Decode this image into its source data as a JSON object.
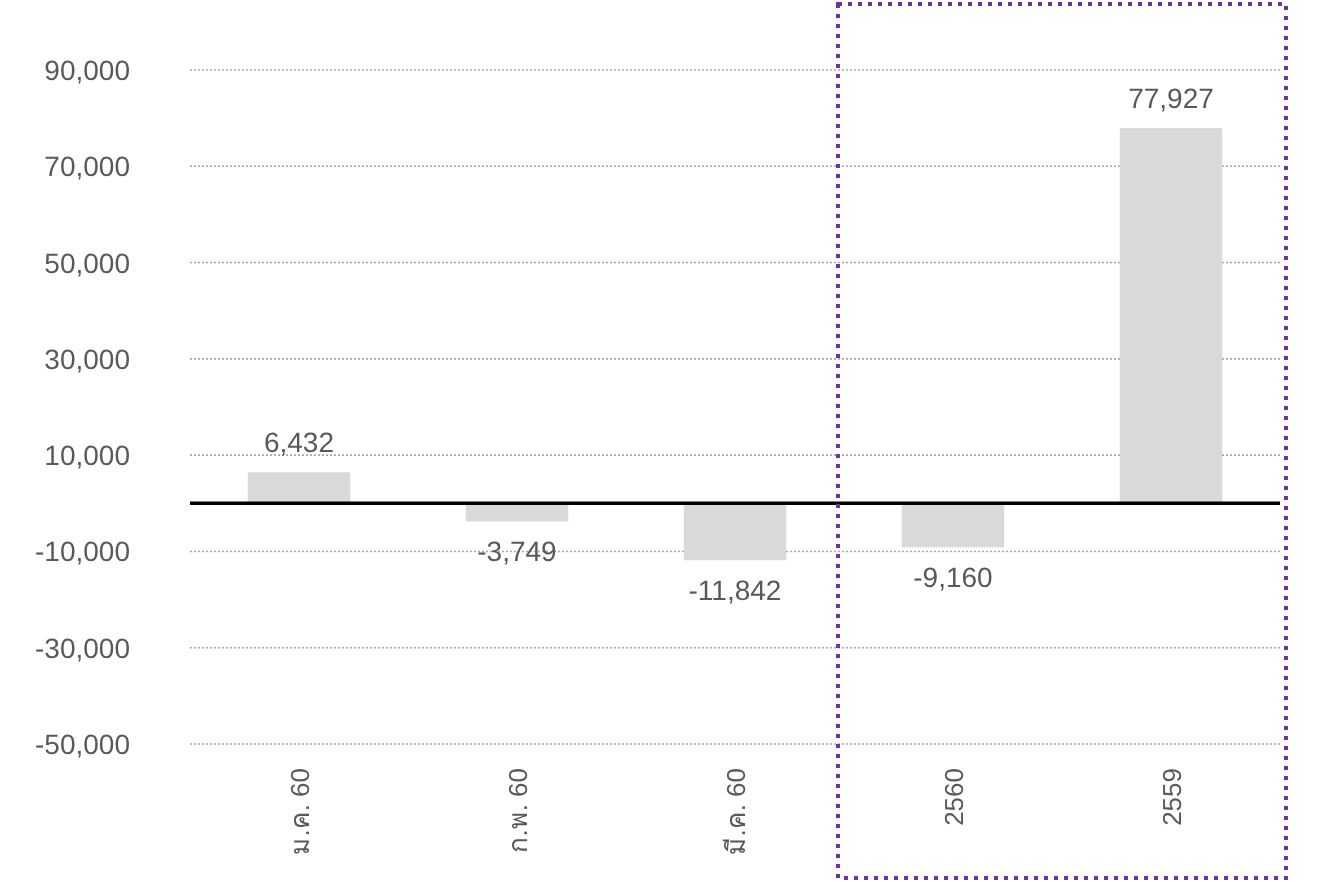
{
  "chart_data": {
    "type": "bar",
    "categories": [
      "ม.ค. 60",
      "ก.พ. 60",
      "มี.ค. 60",
      "2560",
      "2559"
    ],
    "values": [
      6432,
      -3749,
      -11842,
      -9160,
      77927
    ],
    "value_labels": [
      "6,432",
      "-3,749",
      "-11,842",
      "-9,160",
      "77,927"
    ],
    "color": "#d9d9d9",
    "ylim": [
      -50000,
      90000
    ],
    "yticks": [
      {
        "value": -50000,
        "label": "-50,000"
      },
      {
        "value": -30000,
        "label": "-30,000"
      },
      {
        "value": -10000,
        "label": "-10,000"
      },
      {
        "value": 10000,
        "label": "10,000"
      },
      {
        "value": 30000,
        "label": "30,000"
      },
      {
        "value": 50000,
        "label": "50,000"
      },
      {
        "value": 70000,
        "label": "70,000"
      },
      {
        "value": 90000,
        "label": "90,000"
      }
    ],
    "grid": "y"
  }
}
